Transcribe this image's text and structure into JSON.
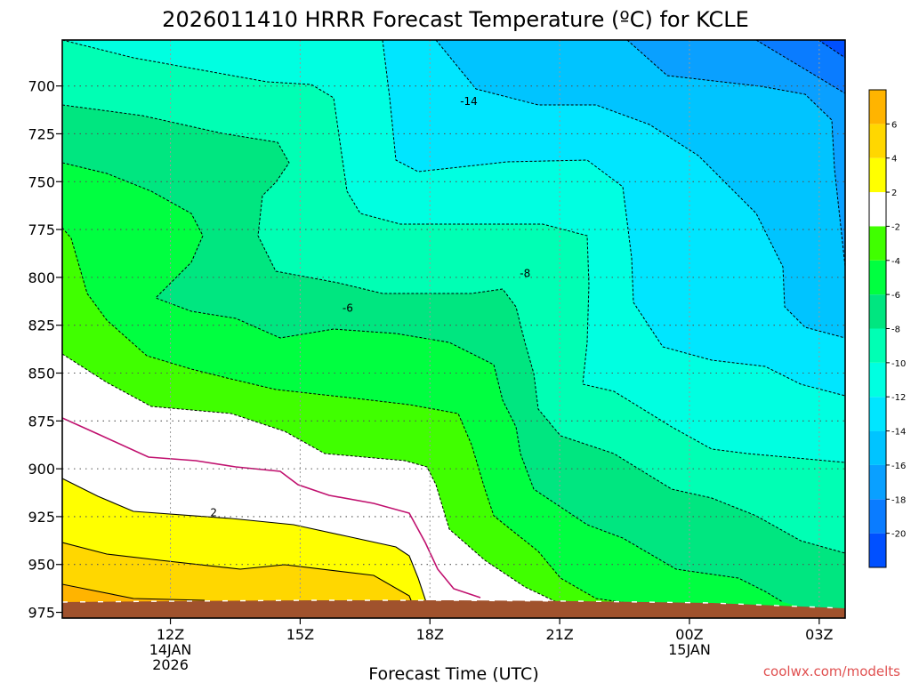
{
  "chart_data": {
    "type": "contour",
    "title": "2026011410 HRRR Forecast Temperature (ºC) for KCLE",
    "xlabel": "Forecast Time (UTC)",
    "ylabel": "",
    "credit": "coolwx.com/modelts",
    "y_ticks": [
      700,
      725,
      750,
      775,
      800,
      825,
      850,
      875,
      900,
      925,
      950,
      975
    ],
    "y_range": [
      676,
      978
    ],
    "x_range_hours": [
      9.5,
      27.6
    ],
    "x_ticks": [
      {
        "hour": 12,
        "lines": [
          "12Z",
          "14JAN",
          "2026"
        ]
      },
      {
        "hour": 15,
        "lines": [
          "15Z"
        ]
      },
      {
        "hour": 18,
        "lines": [
          "18Z"
        ]
      },
      {
        "hour": 21,
        "lines": [
          "21Z"
        ]
      },
      {
        "hour": 24,
        "lines": [
          "00Z",
          "15JAN"
        ]
      },
      {
        "hour": 27,
        "lines": [
          "03Z"
        ]
      }
    ],
    "colorbar": {
      "levels": [
        -22,
        -20,
        -18,
        -16,
        -14,
        -12,
        -10,
        -8,
        -6,
        -4,
        -2,
        2,
        4,
        6,
        8
      ],
      "colors": [
        "#0050ff",
        "#0a7cff",
        "#0aa0ff",
        "#00c4ff",
        "#00e6ff",
        "#00ffe1",
        "#00ffb4",
        "#00e680",
        "#00ff40",
        "#40ff00",
        "#ffffff",
        "#ffff00",
        "#ffd700",
        "#ffb400"
      ],
      "labels": [
        "-20",
        "-18",
        "-16",
        "-14",
        "-12",
        "-10",
        "-8",
        "-6",
        "-4",
        "-2",
        "2",
        "4",
        "6"
      ]
    },
    "contour_labels": [
      {
        "text": "-14",
        "hour": 18.9,
        "pressure": 708
      },
      {
        "text": "-8",
        "hour": 20.2,
        "pressure": 798
      },
      {
        "text": "-6",
        "hour": 16.1,
        "pressure": 816
      },
      {
        "text": "2",
        "hour": 13.0,
        "pressure": 923
      }
    ],
    "ground_color": "#a0522d"
  }
}
